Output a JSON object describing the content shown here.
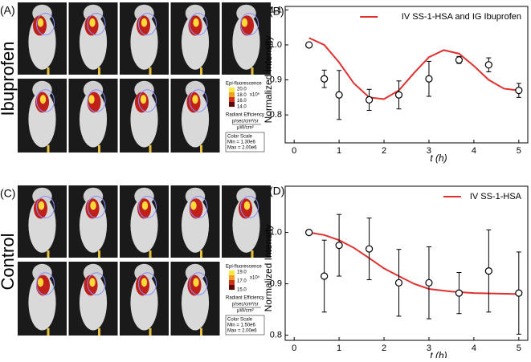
{
  "panels": [
    {
      "label": "(A)",
      "group": "Ibuprofen",
      "scale_title": "Epi-fluorescence",
      "scale_ticks": [
        "20.0",
        "18.0",
        "16.0",
        "14.0"
      ],
      "scale_unit": "x10⁵",
      "efficiency": "Radiant Efficiency",
      "efficiency_num": "p/sec/cm²/sr",
      "efficiency_den": "μW/cm²",
      "color_scale": "Color Scale",
      "min": "Min = 1.30e6",
      "max": "Max = 2.00e6"
    },
    {
      "label": "(C)",
      "group": "Control",
      "scale_title": "Epi-fluorescence",
      "scale_ticks": [
        "19.0",
        "17.0",
        "15.0"
      ],
      "scale_unit": "x10⁵",
      "efficiency": "Radiant Efficiency",
      "efficiency_num": "p/sec/cm²/sr",
      "efficiency_den": "μW/cm²",
      "color_scale": "Color Scale",
      "min": "Min = 1.50e6",
      "max": "Max = 2.00e6"
    }
  ],
  "chart_data": [
    {
      "type": "line",
      "panel_label": "(B)",
      "y_label": "Normalized Intensity",
      "x_label": "t (h)",
      "xlim": [
        -0.2,
        5.2
      ],
      "xticks": [
        0,
        1,
        2,
        3,
        4,
        5
      ],
      "ylim": [
        0.72,
        1.11
      ],
      "yticks": [
        0.8,
        0.9,
        {
          "value": 1,
          "label": "1.0"
        },
        1.1
      ],
      "series": [
        {
          "name": "IV SS-1-HSA and IG Ibuprofen",
          "color": "#e03030",
          "x": [
            0.33,
            0.67,
            1.0,
            1.33,
            1.67,
            2.0,
            2.33,
            2.67,
            3.0,
            3.33,
            3.67,
            4.0,
            4.33,
            4.67,
            5.0
          ],
          "values": [
            1.02,
            1.0,
            0.95,
            0.89,
            0.85,
            0.845,
            0.87,
            0.92,
            0.965,
            0.985,
            0.975,
            0.94,
            0.9,
            0.875,
            0.87
          ]
        }
      ],
      "points": {
        "x": [
          0.33,
          0.67,
          1.0,
          1.67,
          2.33,
          3.0,
          3.67,
          4.33,
          5.0
        ],
        "values": [
          1.0,
          0.903,
          0.857,
          0.843,
          0.857,
          0.903,
          0.957,
          0.943,
          0.87
        ],
        "errors": [
          0,
          0.025,
          0.07,
          0.03,
          0.04,
          0.05,
          0.01,
          0.02,
          0.02
        ]
      },
      "legend": "upper right"
    },
    {
      "type": "line",
      "panel_label": "(D)",
      "y_label": "Normalized Intensity",
      "x_label": "t (h)",
      "xlim": [
        -0.2,
        5.2
      ],
      "xticks": [
        0,
        1,
        2,
        3,
        4,
        5
      ],
      "ylim": [
        0.79,
        1.09
      ],
      "yticks": [
        0.8,
        0.9,
        {
          "value": 1,
          "label": "1.0"
        }
      ],
      "series": [
        {
          "name": "IV SS-1-HSA",
          "color": "#e03030",
          "x": [
            0.33,
            0.67,
            1.0,
            1.33,
            1.67,
            2.0,
            2.33,
            2.67,
            3.0,
            3.5,
            4.0,
            4.5,
            5.0
          ],
          "values": [
            1.0,
            0.995,
            0.985,
            0.97,
            0.95,
            0.93,
            0.915,
            0.9,
            0.89,
            0.885,
            0.882,
            0.881,
            0.88
          ]
        }
      ],
      "points": {
        "x": [
          0.33,
          0.67,
          1.0,
          1.67,
          2.33,
          3.0,
          3.67,
          4.33,
          5.0
        ],
        "values": [
          1.0,
          0.915,
          0.975,
          0.968,
          0.902,
          0.902,
          0.882,
          0.925,
          0.882
        ],
        "errors": [
          0,
          0.07,
          0.06,
          0.06,
          0.065,
          0.07,
          0.04,
          0.08,
          0.08
        ]
      },
      "legend": "upper right"
    }
  ]
}
